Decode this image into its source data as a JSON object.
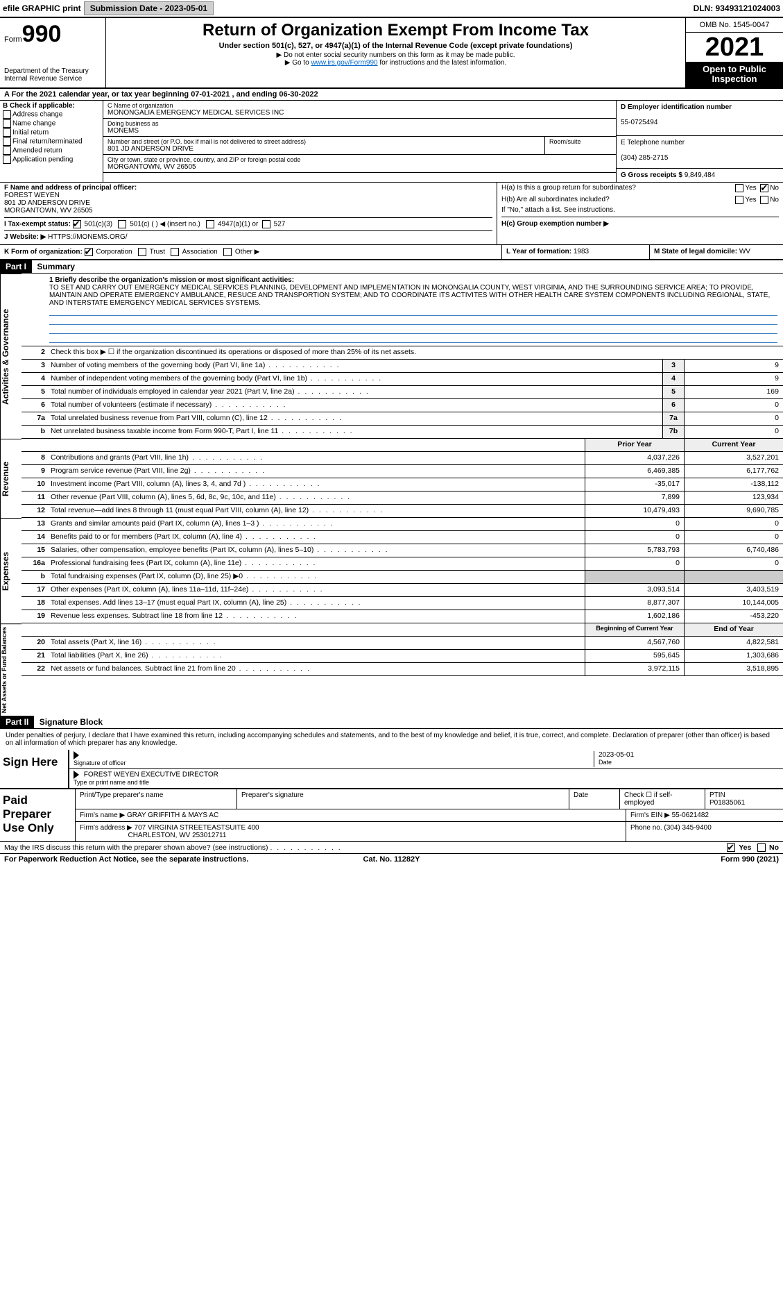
{
  "topbar": {
    "efile": "efile GRAPHIC print",
    "submission": "Submission Date - 2023-05-01",
    "dln": "DLN: 93493121024003"
  },
  "header": {
    "form_label": "Form",
    "form_num": "990",
    "dept": "Department of the Treasury",
    "irs": "Internal Revenue Service",
    "title": "Return of Organization Exempt From Income Tax",
    "sub1": "Under section 501(c), 527, or 4947(a)(1) of the Internal Revenue Code (except private foundations)",
    "sub2": "▶ Do not enter social security numbers on this form as it may be made public.",
    "sub3_pre": "▶ Go to ",
    "sub3_link": "www.irs.gov/Form990",
    "sub3_post": " for instructions and the latest information.",
    "omb": "OMB No. 1545-0047",
    "year": "2021",
    "open": "Open to Public Inspection"
  },
  "row_a": "A For the 2021 calendar year, or tax year beginning 07-01-2021     , and ending 06-30-2022",
  "col_b": {
    "title": "B Check if applicable:",
    "items": [
      "Address change",
      "Name change",
      "Initial return",
      "Final return/terminated",
      "Amended return",
      "Application pending"
    ]
  },
  "col_c": {
    "name_lbl": "C Name of organization",
    "name": "MONONGALIA EMERGENCY MEDICAL SERVICES INC",
    "dba_lbl": "Doing business as",
    "dba": "MONEMS",
    "street_lbl": "Number and street (or P.O. box if mail is not delivered to street address)",
    "street": "801 JD ANDERSON DRIVE",
    "room_lbl": "Room/suite",
    "city_lbl": "City or town, state or province, country, and ZIP or foreign postal code",
    "city": "MORGANTOWN, WV  26505",
    "officer_lbl": "F  Name and address of principal officer:",
    "officer_name": "FOREST WEYEN",
    "officer_street": "801 JD ANDERSON DRIVE",
    "officer_city": "MORGANTOWN, WV  26505"
  },
  "col_d": {
    "ein_lbl": "D Employer identification number",
    "ein": "55-0725494",
    "phone_lbl": "E Telephone number",
    "phone": "(304) 285-2715",
    "gross_lbl": "G Gross receipts $",
    "gross": "9,849,484"
  },
  "h": {
    "ha": "H(a)  Is this a group return for subordinates?",
    "hb": "H(b)  Are all subordinates included?",
    "hb_note": "If \"No,\" attach a list. See instructions.",
    "hc": "H(c)  Group exemption number ▶",
    "yes": "Yes",
    "no": "No"
  },
  "i": {
    "lbl": "I   Tax-exempt status:",
    "opt1": "501(c)(3)",
    "opt2": "501(c) (   ) ◀ (insert no.)",
    "opt3": "4947(a)(1) or",
    "opt4": "527"
  },
  "j": {
    "lbl": "J   Website: ▶",
    "val": "HTTPS://MONEMS.ORG/"
  },
  "k": {
    "lbl": "K Form of organization:",
    "opts": [
      "Corporation",
      "Trust",
      "Association",
      "Other ▶"
    ],
    "l_lbl": "L Year of formation:",
    "l_val": "1983",
    "m_lbl": "M State of legal domicile:",
    "m_val": "WV"
  },
  "part1": {
    "hdr": "Part I",
    "title": "Summary",
    "sidebar1": "Activities & Governance",
    "sidebar2": "Revenue",
    "sidebar3": "Expenses",
    "sidebar4": "Net Assets or Fund Balances",
    "line1_lbl": "1  Briefly describe the organization's mission or most significant activities:",
    "mission": "TO SET AND CARRY OUT EMERGENCY MEDICAL SERVICES PLANNING, DEVELOPMENT AND IMPLEMENTATION IN MONONGALIA COUNTY, WEST VIRGINIA, AND THE SURROUNDING SERVICE AREA; TO PROVIDE, MAINTAIN AND OPERATE EMERGENCY AMBULANCE, RESUCE AND TRANSPORTION SYSTEM; AND TO COORDINATE ITS ACTIVITES WITH OTHER HEALTH CARE SYSTEM COMPONENTS INCLUDING REGIONAL, STATE, AND INTERSTATE EMERGENCY MEDICAL SERVICES SYSTEMS.",
    "line2": "Check this box ▶ ☐  if the organization discontinued its operations or disposed of more than 25% of its net assets.",
    "lines_gov": [
      {
        "n": "3",
        "d": "Number of voting members of the governing body (Part VI, line 1a)",
        "b": "3",
        "v": "9"
      },
      {
        "n": "4",
        "d": "Number of independent voting members of the governing body (Part VI, line 1b)",
        "b": "4",
        "v": "9"
      },
      {
        "n": "5",
        "d": "Total number of individuals employed in calendar year 2021 (Part V, line 2a)",
        "b": "5",
        "v": "169"
      },
      {
        "n": "6",
        "d": "Total number of volunteers (estimate if necessary)",
        "b": "6",
        "v": "0"
      },
      {
        "n": "7a",
        "d": "Total unrelated business revenue from Part VIII, column (C), line 12",
        "b": "7a",
        "v": "0"
      },
      {
        "n": "b",
        "d": "Net unrelated business taxable income from Form 990-T, Part I, line 11",
        "b": "7b",
        "v": "0"
      }
    ],
    "hdr_prior": "Prior Year",
    "hdr_current": "Current Year",
    "lines_rev": [
      {
        "n": "8",
        "d": "Contributions and grants (Part VIII, line 1h)",
        "p": "4,037,226",
        "c": "3,527,201"
      },
      {
        "n": "9",
        "d": "Program service revenue (Part VIII, line 2g)",
        "p": "6,469,385",
        "c": "6,177,762"
      },
      {
        "n": "10",
        "d": "Investment income (Part VIII, column (A), lines 3, 4, and 7d )",
        "p": "-35,017",
        "c": "-138,112"
      },
      {
        "n": "11",
        "d": "Other revenue (Part VIII, column (A), lines 5, 6d, 8c, 9c, 10c, and 11e)",
        "p": "7,899",
        "c": "123,934"
      },
      {
        "n": "12",
        "d": "Total revenue—add lines 8 through 11 (must equal Part VIII, column (A), line 12)",
        "p": "10,479,493",
        "c": "9,690,785"
      }
    ],
    "lines_exp": [
      {
        "n": "13",
        "d": "Grants and similar amounts paid (Part IX, column (A), lines 1–3 )",
        "p": "0",
        "c": "0"
      },
      {
        "n": "14",
        "d": "Benefits paid to or for members (Part IX, column (A), line 4)",
        "p": "0",
        "c": "0"
      },
      {
        "n": "15",
        "d": "Salaries, other compensation, employee benefits (Part IX, column (A), lines 5–10)",
        "p": "5,783,793",
        "c": "6,740,486"
      },
      {
        "n": "16a",
        "d": "Professional fundraising fees (Part IX, column (A), line 11e)",
        "p": "0",
        "c": "0"
      },
      {
        "n": "b",
        "d": "Total fundraising expenses (Part IX, column (D), line 25) ▶0",
        "p": "",
        "c": "",
        "shaded": true
      },
      {
        "n": "17",
        "d": "Other expenses (Part IX, column (A), lines 11a–11d, 11f–24e)",
        "p": "3,093,514",
        "c": "3,403,519"
      },
      {
        "n": "18",
        "d": "Total expenses. Add lines 13–17 (must equal Part IX, column (A), line 25)",
        "p": "8,877,307",
        "c": "10,144,005"
      },
      {
        "n": "19",
        "d": "Revenue less expenses. Subtract line 18 from line 12",
        "p": "1,602,186",
        "c": "-453,220"
      }
    ],
    "hdr_begin": "Beginning of Current Year",
    "hdr_end": "End of Year",
    "lines_net": [
      {
        "n": "20",
        "d": "Total assets (Part X, line 16)",
        "p": "4,567,760",
        "c": "4,822,581"
      },
      {
        "n": "21",
        "d": "Total liabilities (Part X, line 26)",
        "p": "595,645",
        "c": "1,303,686"
      },
      {
        "n": "22",
        "d": "Net assets or fund balances. Subtract line 21 from line 20",
        "p": "3,972,115",
        "c": "3,518,895"
      }
    ]
  },
  "part2": {
    "hdr": "Part II",
    "title": "Signature Block",
    "decl": "Under penalties of perjury, I declare that I have examined this return, including accompanying schedules and statements, and to the best of my knowledge and belief, it is true, correct, and complete. Declaration of preparer (other than officer) is based on all information of which preparer has any knowledge.",
    "sign_here": "Sign Here",
    "sig_officer": "Signature of officer",
    "date": "Date",
    "date_val": "2023-05-01",
    "name_title": "FOREST WEYEN  EXECUTIVE DIRECTOR",
    "name_title_lbl": "Type or print name and title",
    "paid": "Paid Preparer Use Only",
    "p_name_lbl": "Print/Type preparer's name",
    "p_sig_lbl": "Preparer's signature",
    "p_date_lbl": "Date",
    "p_check": "Check ☐ if self-employed",
    "ptin_lbl": "PTIN",
    "ptin": "P01835061",
    "firm_name_lbl": "Firm's name    ▶",
    "firm_name": "GRAY GRIFFITH & MAYS AC",
    "firm_ein_lbl": "Firm's EIN ▶",
    "firm_ein": "55-0621482",
    "firm_addr_lbl": "Firm's address ▶",
    "firm_addr1": "707 VIRGINIA STREETEASTSUITE 400",
    "firm_addr2": "CHARLESTON, WV  253012711",
    "firm_phone_lbl": "Phone no.",
    "firm_phone": "(304) 345-9400",
    "discuss": "May the IRS discuss this return with the preparer shown above? (see instructions)"
  },
  "footer": {
    "left": "For Paperwork Reduction Act Notice, see the separate instructions.",
    "mid": "Cat. No. 11282Y",
    "right": "Form 990 (2021)"
  }
}
